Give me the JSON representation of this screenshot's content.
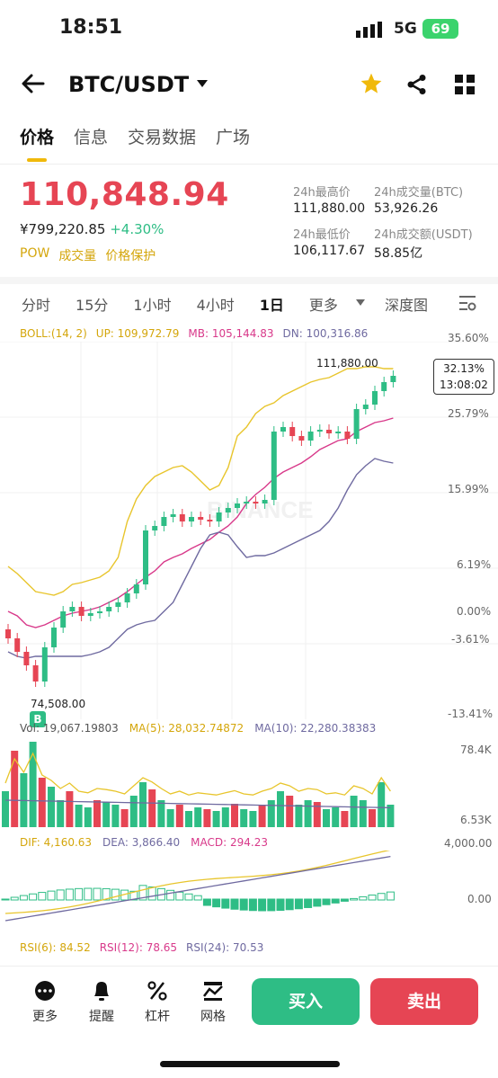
{
  "status_bar": {
    "time": "18:51",
    "network": "5G",
    "battery": "69"
  },
  "header": {
    "pair": "BTC/USDT"
  },
  "tabs": [
    "价格",
    "信息",
    "交易数据",
    "广场"
  ],
  "price": {
    "last": "110,848.94",
    "cny": "¥799,220.85",
    "change_pct": "+4.30%",
    "tags": [
      "POW",
      "成交量",
      "价格保护"
    ]
  },
  "stats": {
    "high_label": "24h最高价",
    "high": "111,880.00",
    "vol_btc_label": "24h成交量(BTC)",
    "vol_btc": "53,926.26",
    "low_label": "24h最低价",
    "low": "106,117.67",
    "vol_usdt_label": "24h成交额(USDT)",
    "vol_usdt": "58.85亿"
  },
  "intervals": {
    "items": [
      "分时",
      "15分",
      "1小时",
      "4小时",
      "1日",
      "更多"
    ],
    "selected": "1日",
    "depth": "深度图"
  },
  "boll": {
    "label": "BOLL:(14, 2)",
    "up": "UP: 109,972.79",
    "mb": "MB: 105,144.83",
    "dn": "DN: 100,316.86"
  },
  "right_axis": [
    "35.60%",
    "25.79%",
    "15.99%",
    "6.19%",
    "0.00%",
    "-3.61%",
    "-13.41%"
  ],
  "markers": {
    "high": "111,880.00",
    "low": "74,508.00",
    "badge_pct": "32.13%",
    "badge_time": "13:08:02",
    "buy_marker": "B"
  },
  "volume": {
    "vol": "Vol: 19,067.19803",
    "ma5": "MA(5): 28,032.74872",
    "ma10": "MA(10): 22,280.38383",
    "axis_top": "78.4K",
    "axis_bottom": "6.53K"
  },
  "macd": {
    "dif": "DIF: 4,160.63",
    "dea": "DEA: 3,866.40",
    "macd": "MACD: 294.23",
    "axis_top": "4,000.00",
    "axis_mid": "0.00"
  },
  "rsi": {
    "rsi6": "RSI(6): 84.52",
    "rsi12": "RSI(12): 78.65",
    "rsi24": "RSI(24): 70.53"
  },
  "bottom_bar": {
    "more": "更多",
    "alert": "提醒",
    "leverage": "杠杆",
    "grid": "网格",
    "buy": "买入",
    "sell": "卖出"
  },
  "colors": {
    "up": "#2ebd85",
    "down": "#e64554",
    "accent": "#f0b90b",
    "boll_up": "#e8c52c",
    "boll_mb": "#d8398a",
    "boll_dn": "#6f6aa0"
  }
}
